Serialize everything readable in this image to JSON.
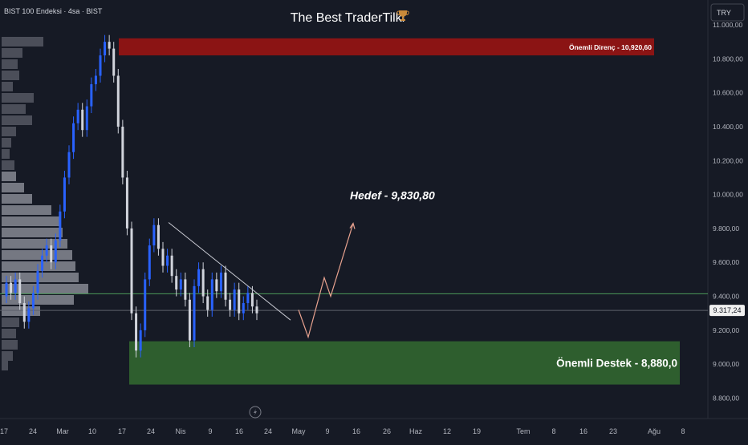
{
  "header": {
    "symbol_label": "BIST 100 Endeksi · 4sa · BIST",
    "title": "The Best TraderTilki",
    "title_icon": "trophy-icon",
    "currency_button": "TRY"
  },
  "colors": {
    "background": "#161a25",
    "candle_up": "#2962ff",
    "candle_down": "#d1d4dc",
    "resistance_zone": "#8b1414",
    "support_zone": "#2e5e2e",
    "volume_profile": "#5d606b",
    "projection": "#e8a28f",
    "horizontal_line": "#4c9a5a",
    "trendline": "#c8cad2",
    "text": "#d1d4dc"
  },
  "chart_data": {
    "type": "candlestick",
    "title": "The Best TraderTilki",
    "y_axis": {
      "range": [
        8730,
        11050
      ],
      "tick_labels": [
        "11.000,00",
        "10.800,00",
        "10.600,00",
        "10.400,00",
        "10.200,00",
        "10.000,00",
        "9.800,00",
        "9.600,00",
        "9.400,00",
        "9.200,00",
        "9.000,00",
        "8.800,00"
      ],
      "tick_values": [
        11000,
        10800,
        10600,
        10400,
        10200,
        10000,
        9800,
        9600,
        9400,
        9200,
        9000,
        8800
      ]
    },
    "x_axis": {
      "tick_labels": [
        "17",
        "24",
        "Mar",
        "10",
        "17",
        "24",
        "Nis",
        "9",
        "16",
        "24",
        "May",
        "9",
        "16",
        "26",
        "Haz",
        "12",
        "19",
        "Tem",
        "8",
        "16",
        "23",
        "Ağu",
        "8"
      ]
    },
    "current_price": {
      "label": "9.317,24",
      "value": 9317.24
    },
    "horizontal_line": {
      "value": 9415
    },
    "resistance_zone": {
      "label": "Önemli Direnç - 10,920,60",
      "low": 10820,
      "high": 10920.6
    },
    "support_zone": {
      "label": "Önemli Destek - 8,880,0",
      "low": 8880,
      "high": 9135
    },
    "target": {
      "label": "Hedef - 9,830,80",
      "value": 9830.8
    },
    "price_path": [
      [
        9400,
        9480
      ],
      [
        9480,
        9420
      ],
      [
        9420,
        9500
      ],
      [
        9500,
        9360
      ],
      [
        9360,
        9250
      ],
      [
        9250,
        9330
      ],
      [
        9330,
        9420
      ],
      [
        9420,
        9550
      ],
      [
        9550,
        9640
      ],
      [
        9640,
        9700
      ],
      [
        9700,
        9600
      ],
      [
        9600,
        9730
      ],
      [
        9730,
        9900
      ],
      [
        9900,
        10100
      ],
      [
        10100,
        10250
      ],
      [
        10250,
        10420
      ],
      [
        10420,
        10500
      ],
      [
        10500,
        10380
      ],
      [
        10380,
        10520
      ],
      [
        10520,
        10650
      ],
      [
        10650,
        10700
      ],
      [
        10700,
        10820
      ],
      [
        10820,
        10900
      ],
      [
        10900,
        10860
      ],
      [
        10860,
        10700
      ],
      [
        10700,
        10400
      ],
      [
        10400,
        10100
      ],
      [
        10100,
        9800
      ],
      [
        9800,
        9300
      ],
      [
        9300,
        9080
      ],
      [
        9080,
        9200
      ],
      [
        9200,
        9500
      ],
      [
        9500,
        9700
      ],
      [
        9700,
        9820
      ],
      [
        9820,
        9680
      ],
      [
        9680,
        9580
      ],
      [
        9580,
        9640
      ],
      [
        9640,
        9520
      ],
      [
        9520,
        9440
      ],
      [
        9440,
        9500
      ],
      [
        9500,
        9380
      ],
      [
        9380,
        9140
      ],
      [
        9140,
        9460
      ],
      [
        9460,
        9560
      ],
      [
        9560,
        9400
      ],
      [
        9400,
        9320
      ],
      [
        9320,
        9500
      ],
      [
        9500,
        9430
      ],
      [
        9430,
        9540
      ],
      [
        9540,
        9380
      ],
      [
        9380,
        9320
      ],
      [
        9320,
        9440
      ],
      [
        9440,
        9300
      ],
      [
        9300,
        9360
      ],
      [
        9360,
        9420
      ],
      [
        9420,
        9340
      ],
      [
        9340,
        9300
      ]
    ],
    "trendline": [
      [
        9835,
        0.0
      ],
      [
        9260,
        1.0
      ]
    ],
    "projection": [
      9320,
      9160,
      9510,
      9400,
      9830
    ]
  }
}
